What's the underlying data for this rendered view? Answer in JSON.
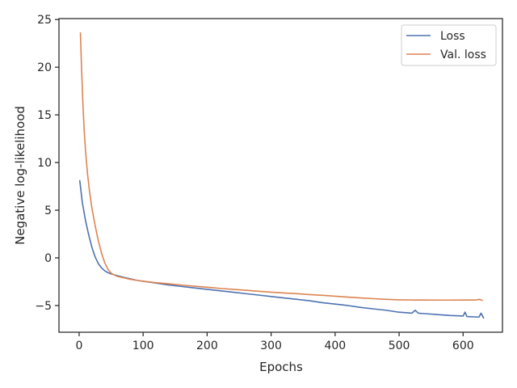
{
  "chart_data": {
    "type": "line",
    "title": "",
    "xlabel": "Epochs",
    "ylabel": "Negative log-likelihood",
    "xlim": [
      -31.5,
      661.5
    ],
    "ylim": [
      -7.8,
      25.1
    ],
    "xticks": [
      0,
      100,
      200,
      300,
      400,
      500,
      600
    ],
    "xtick_labels": [
      "0",
      "100",
      "200",
      "300",
      "400",
      "500",
      "600"
    ],
    "yticks": [
      -5,
      0,
      5,
      10,
      15,
      20,
      25
    ],
    "ytick_labels": [
      "−5",
      "0",
      "5",
      "10",
      "15",
      "20",
      "25"
    ],
    "grid": false,
    "legend_position": "top-right",
    "series": [
      {
        "name": "Loss",
        "color": "#4c72b0",
        "x": [
          1,
          5,
          10,
          15,
          20,
          25,
          30,
          35,
          40,
          45,
          50,
          55,
          60,
          70,
          80,
          90,
          100,
          120,
          140,
          160,
          180,
          200,
          220,
          240,
          260,
          280,
          300,
          320,
          340,
          360,
          380,
          400,
          420,
          440,
          460,
          480,
          500,
          520,
          525,
          530,
          540,
          560,
          580,
          600,
          603,
          606,
          620,
          625,
          628,
          632
        ],
        "y": [
          8.1,
          5.8,
          3.9,
          2.4,
          1.1,
          0.1,
          -0.6,
          -1.05,
          -1.35,
          -1.55,
          -1.68,
          -1.78,
          -1.88,
          -2.05,
          -2.2,
          -2.35,
          -2.45,
          -2.65,
          -2.85,
          -3.0,
          -3.15,
          -3.3,
          -3.45,
          -3.6,
          -3.75,
          -3.9,
          -4.05,
          -4.2,
          -4.35,
          -4.5,
          -4.7,
          -4.85,
          -5.0,
          -5.2,
          -5.35,
          -5.5,
          -5.7,
          -5.8,
          -5.5,
          -5.8,
          -5.85,
          -5.95,
          -6.05,
          -6.1,
          -5.7,
          -6.15,
          -6.2,
          -6.2,
          -5.8,
          -6.3
        ]
      },
      {
        "name": "Val. loss",
        "color": "#dd8452",
        "x": [
          2,
          4,
          6,
          8,
          10,
          13,
          16,
          20,
          25,
          30,
          35,
          40,
          45,
          50,
          55,
          60,
          70,
          80,
          90,
          100,
          120,
          140,
          160,
          180,
          200,
          220,
          240,
          260,
          280,
          300,
          320,
          340,
          360,
          380,
          400,
          420,
          440,
          460,
          480,
          500,
          520,
          540,
          560,
          580,
          600,
          610,
          620,
          625,
          630
        ],
        "y": [
          23.6,
          19.5,
          16.0,
          13.3,
          11.2,
          8.9,
          7.1,
          5.2,
          3.4,
          1.8,
          0.5,
          -0.5,
          -1.2,
          -1.6,
          -1.8,
          -1.95,
          -2.1,
          -2.25,
          -2.35,
          -2.45,
          -2.6,
          -2.72,
          -2.85,
          -2.97,
          -3.08,
          -3.2,
          -3.3,
          -3.4,
          -3.5,
          -3.6,
          -3.68,
          -3.76,
          -3.85,
          -3.93,
          -4.02,
          -4.12,
          -4.2,
          -4.28,
          -4.35,
          -4.4,
          -4.42,
          -4.42,
          -4.43,
          -4.43,
          -4.42,
          -4.42,
          -4.42,
          -4.35,
          -4.45
        ]
      }
    ]
  }
}
